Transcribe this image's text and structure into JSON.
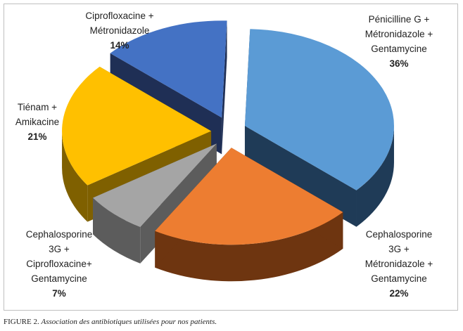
{
  "chart_data": {
    "type": "pie",
    "title": "",
    "slices": [
      {
        "label_lines": [
          "Pénicilline G +",
          "Métronidazole +",
          "Gentamycine"
        ],
        "percent_text": "36%",
        "value": 36,
        "color": "#5b9bd5",
        "side_color": "#1f3b57"
      },
      {
        "label_lines": [
          "Cephalosporine",
          "3G +",
          "Métronidazole +",
          "Gentamycine"
        ],
        "percent_text": "22%",
        "value": 22,
        "color": "#ed7d31",
        "side_color": "#6e3510"
      },
      {
        "label_lines": [
          "Cephalosporine",
          "3G +",
          "Ciprofloxacine+",
          "Gentamycine"
        ],
        "percent_text": "7%",
        "value": 7,
        "color": "#a5a5a5",
        "side_color": "#5c5c5c"
      },
      {
        "label_lines": [
          "Tiénam +",
          "Amikacine"
        ],
        "percent_text": "21%",
        "value": 21,
        "color": "#ffc000",
        "side_color": "#7f6000"
      },
      {
        "label_lines": [
          "Ciprofloxacine +",
          "Métronidazole"
        ],
        "percent_text": "14%",
        "value": 14,
        "color": "#4472c4",
        "side_color": "#1f2f55"
      }
    ]
  },
  "caption": {
    "label": "FIGURE 2.",
    "text": "Association des antibiotiques utilisées pour nos patients."
  }
}
